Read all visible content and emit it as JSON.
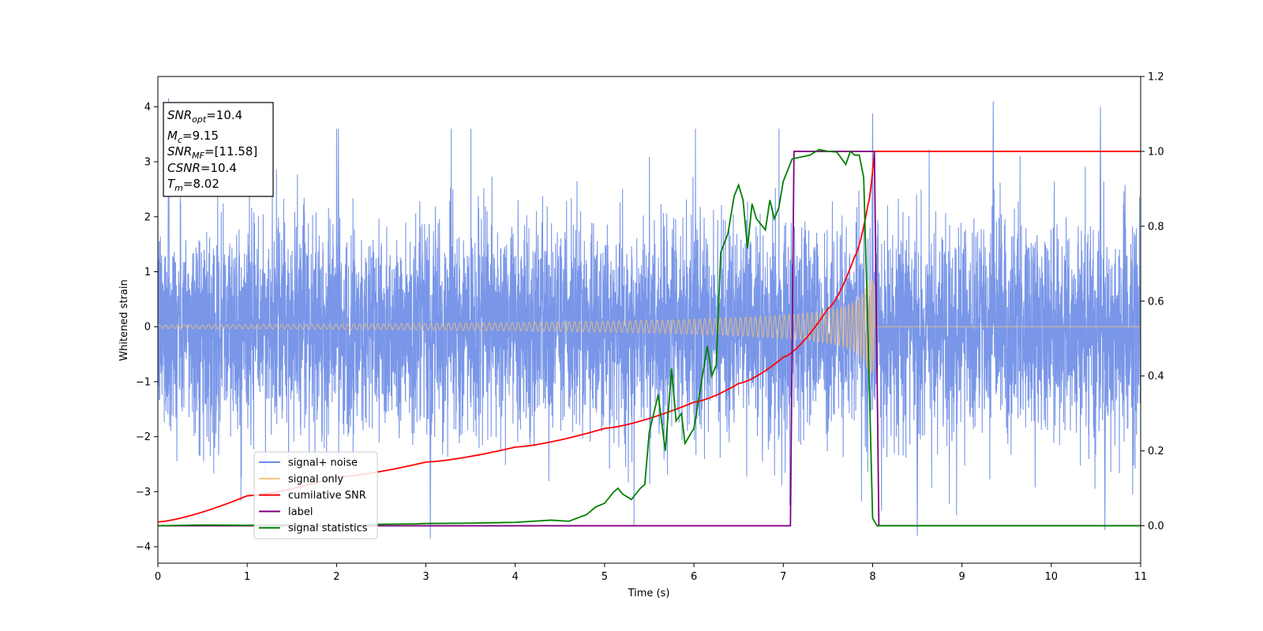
{
  "chart_data": {
    "type": "line",
    "xlabel": "Time (s)",
    "ylabel": "Whitened strain",
    "xlim": [
      0,
      11
    ],
    "ylim_left": [
      -4.3,
      4.55
    ],
    "ylim_right": [
      -0.1,
      1.2
    ],
    "xticks": [
      "0",
      "1",
      "2",
      "3",
      "4",
      "5",
      "6",
      "7",
      "8",
      "9",
      "10",
      "11"
    ],
    "yticks_left": [
      "−4",
      "−3",
      "−2",
      "−1",
      "0",
      "1",
      "2",
      "3",
      "4"
    ],
    "yticks_right": [
      "0.0",
      "0.2",
      "0.4",
      "0.6",
      "0.8",
      "1.0",
      "1.2"
    ],
    "legend_placement": "lower-left",
    "colors": {
      "signal_noise": "#6a8be6",
      "signal_only": "#f5c27a",
      "cumulative_snr": "#ff0000",
      "label": "#800080",
      "signal_statistics": "#008000"
    },
    "annotation": [
      {
        "sym": "SNR",
        "sub": "opt",
        "val": "=10.4"
      },
      {
        "sym": "M",
        "sub": "c",
        "val": "=9.15"
      },
      {
        "sym": "SNR",
        "sub": "MF",
        "val": "=[11.58]"
      },
      {
        "sym": "CSNR",
        "sub": "",
        "val": "=10.4"
      },
      {
        "sym": "T",
        "sub": "m",
        "val": "=8.02"
      }
    ],
    "series": [
      {
        "name": "signal+ noise",
        "axis": "left",
        "description_stats": {
          "x_range": [
            0,
            11
          ],
          "amplitude_typical": 1.8,
          "y_min": -3.85,
          "y_max": 4.15
        },
        "peaks": [
          [
            0.12,
            4.15
          ],
          [
            2.02,
            3.6
          ],
          [
            3.05,
            -3.85
          ],
          [
            8.0,
            3.88
          ],
          [
            8.5,
            -3.8
          ],
          [
            9.35,
            4.1
          ],
          [
            10.55,
            4.0
          ],
          [
            10.6,
            -3.7
          ]
        ]
      },
      {
        "name": "signal only",
        "axis": "left",
        "envelope": {
          "t_merger": 8.02,
          "amp_start": 0.05,
          "amp_at_7": 0.22,
          "amp_at_8": 0.85
        },
        "zero_after": 8.05
      },
      {
        "name": "cumilative SNR",
        "axis": "right",
        "x": [
          0,
          1,
          2,
          3,
          4,
          5,
          6,
          6.5,
          7,
          7.5,
          7.8,
          7.95,
          8.02,
          11
        ],
        "y": [
          0.01,
          0.08,
          0.13,
          0.17,
          0.21,
          0.26,
          0.33,
          0.38,
          0.45,
          0.58,
          0.72,
          0.86,
          1.0,
          1.0
        ]
      },
      {
        "name": "label",
        "axis": "right",
        "x": [
          0,
          7.08,
          7.12,
          8.02,
          8.07,
          11
        ],
        "y": [
          0,
          0,
          1,
          1,
          0,
          0
        ]
      },
      {
        "name": "signal statistics",
        "axis": "right",
        "x": [
          0,
          0.5,
          1.0,
          1.5,
          2.0,
          2.5,
          2.9,
          3.0,
          3.5,
          4.0,
          4.4,
          4.6,
          4.8,
          4.9,
          5.0,
          5.1,
          5.15,
          5.2,
          5.3,
          5.4,
          5.45,
          5.5,
          5.6,
          5.68,
          5.75,
          5.8,
          5.86,
          5.9,
          6.0,
          6.15,
          6.2,
          6.25,
          6.3,
          6.38,
          6.45,
          6.5,
          6.55,
          6.6,
          6.65,
          6.7,
          6.8,
          6.85,
          6.9,
          6.95,
          7.0,
          7.1,
          7.2,
          7.3,
          7.4,
          7.5,
          7.6,
          7.7,
          7.75,
          7.8,
          7.85,
          7.9,
          7.95,
          8.0,
          8.05,
          8.1,
          11
        ],
        "y": [
          0.0,
          0.002,
          0.001,
          0.003,
          0.0,
          0.004,
          0.005,
          0.006,
          0.007,
          0.009,
          0.015,
          0.012,
          0.03,
          0.05,
          0.06,
          0.09,
          0.1,
          0.085,
          0.07,
          0.1,
          0.11,
          0.25,
          0.35,
          0.2,
          0.42,
          0.28,
          0.3,
          0.22,
          0.26,
          0.48,
          0.4,
          0.43,
          0.73,
          0.78,
          0.88,
          0.91,
          0.87,
          0.74,
          0.86,
          0.82,
          0.79,
          0.87,
          0.82,
          0.85,
          0.92,
          0.98,
          0.985,
          0.99,
          1.005,
          1.0,
          0.998,
          0.965,
          1.0,
          0.99,
          0.99,
          0.93,
          0.5,
          0.02,
          0.0,
          0.0,
          0.0
        ]
      }
    ]
  }
}
